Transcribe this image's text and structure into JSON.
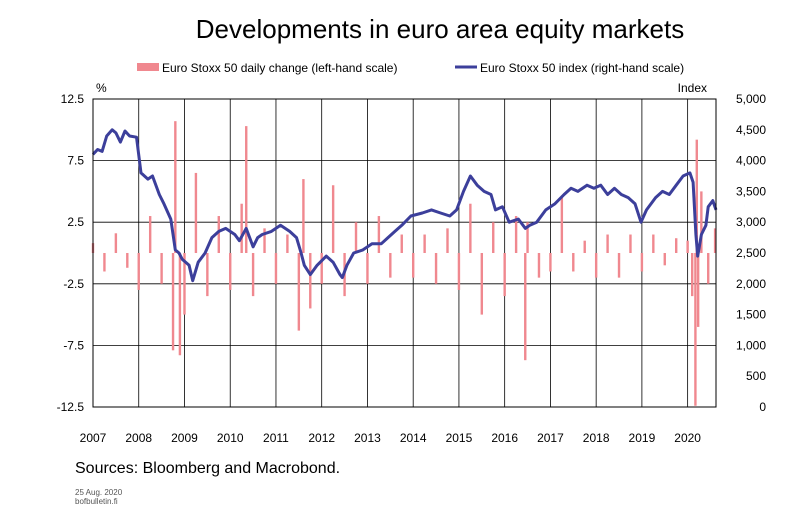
{
  "chart_data": {
    "type": "bar+line",
    "title": "Developments in euro area equity markets",
    "left_axis_unit": "%",
    "right_axis_unit": "Index",
    "left_ylim": [
      -12.5,
      12.5
    ],
    "right_ylim": [
      0,
      5000
    ],
    "left_ticks": [
      "12.5",
      "7.5",
      "2.5",
      "-2.5",
      "-7.5",
      "-12.5"
    ],
    "right_ticks": [
      "5,000",
      "4,500",
      "4,000",
      "3,500",
      "3,000",
      "2,500",
      "2,000",
      "1,500",
      "1,000",
      "500",
      "0"
    ],
    "x_ticks": [
      "2007",
      "2008",
      "2009",
      "2010",
      "2011",
      "2012",
      "2013",
      "2014",
      "2015",
      "2016",
      "2017",
      "2018",
      "2019",
      "2020"
    ],
    "xlim": [
      2007.0,
      2020.62
    ],
    "grid": true,
    "legend_position": "top",
    "series": [
      {
        "name": "Euro Stoxx 50 daily change (left-hand scale)",
        "kind": "bar",
        "axis": "left",
        "color": "#f0888f",
        "x": [
          2007.0,
          2007.25,
          2007.5,
          2007.75,
          2008.0,
          2008.25,
          2008.5,
          2008.75,
          2008.8,
          2008.9,
          2009.0,
          2009.25,
          2009.5,
          2009.75,
          2010.0,
          2010.25,
          2010.35,
          2010.5,
          2010.75,
          2011.0,
          2011.25,
          2011.5,
          2011.6,
          2011.75,
          2012.0,
          2012.25,
          2012.5,
          2012.75,
          2013.0,
          2013.25,
          2013.5,
          2013.75,
          2014.0,
          2014.25,
          2014.5,
          2014.75,
          2015.0,
          2015.25,
          2015.5,
          2015.75,
          2016.0,
          2016.25,
          2016.45,
          2016.5,
          2016.75,
          2017.0,
          2017.25,
          2017.5,
          2017.75,
          2018.0,
          2018.25,
          2018.5,
          2018.75,
          2019.0,
          2019.25,
          2019.5,
          2019.75,
          2020.0,
          2020.1,
          2020.17,
          2020.2,
          2020.23,
          2020.3,
          2020.45,
          2020.6
        ],
        "values": [
          0.8,
          -1.5,
          1.6,
          -1.2,
          -3.0,
          3.0,
          -2.5,
          -7.9,
          10.7,
          -8.3,
          -5.0,
          6.5,
          -3.5,
          3.0,
          -3.0,
          4.0,
          10.3,
          -3.5,
          2.0,
          -2.5,
          1.5,
          -6.3,
          6.0,
          -4.5,
          -2.5,
          5.5,
          -3.5,
          2.5,
          -2.5,
          3.0,
          -2.0,
          1.5,
          -2.0,
          1.5,
          -2.5,
          2.0,
          -3.0,
          4.0,
          -5.0,
          2.5,
          -3.5,
          3.0,
          -8.7,
          2.5,
          -2.0,
          -1.5,
          4.5,
          -1.5,
          1.0,
          -2.0,
          1.5,
          -2.0,
          1.5,
          -1.5,
          1.5,
          -1.0,
          1.2,
          1.0,
          -3.5,
          -12.4,
          9.2,
          -6.0,
          5.0,
          -2.5,
          2.0
        ]
      },
      {
        "name": "Euro Stoxx 50 index (right-hand scale)",
        "kind": "line",
        "axis": "right",
        "color": "#3c3f9b",
        "x": [
          2007.0,
          2007.1,
          2007.2,
          2007.3,
          2007.42,
          2007.5,
          2007.6,
          2007.7,
          2007.8,
          2007.95,
          2008.05,
          2008.2,
          2008.3,
          2008.45,
          2008.55,
          2008.7,
          2008.8,
          2008.88,
          2008.95,
          2009.1,
          2009.18,
          2009.3,
          2009.45,
          2009.6,
          2009.75,
          2009.9,
          2010.1,
          2010.2,
          2010.35,
          2010.5,
          2010.6,
          2010.7,
          2010.9,
          2011.1,
          2011.3,
          2011.45,
          2011.55,
          2011.62,
          2011.75,
          2011.9,
          2012.1,
          2012.25,
          2012.4,
          2012.45,
          2012.55,
          2012.7,
          2012.9,
          2013.1,
          2013.3,
          2013.45,
          2013.6,
          2013.75,
          2013.95,
          2014.2,
          2014.4,
          2014.6,
          2014.8,
          2014.95,
          2015.1,
          2015.25,
          2015.4,
          2015.55,
          2015.7,
          2015.8,
          2015.95,
          2016.1,
          2016.3,
          2016.45,
          2016.55,
          2016.7,
          2016.9,
          2017.1,
          2017.3,
          2017.45,
          2017.6,
          2017.8,
          2017.95,
          2018.1,
          2018.25,
          2018.4,
          2018.55,
          2018.7,
          2018.85,
          2018.98,
          2019.1,
          2019.3,
          2019.45,
          2019.6,
          2019.75,
          2019.9,
          2020.05,
          2020.12,
          2020.18,
          2020.22,
          2020.3,
          2020.4,
          2020.45,
          2020.55,
          2020.62
        ],
        "values": [
          4100,
          4180,
          4150,
          4400,
          4500,
          4450,
          4300,
          4480,
          4400,
          4380,
          3800,
          3700,
          3750,
          3450,
          3300,
          3050,
          2550,
          2500,
          2400,
          2300,
          2050,
          2350,
          2500,
          2750,
          2850,
          2900,
          2800,
          2700,
          2900,
          2600,
          2750,
          2800,
          2850,
          2950,
          2850,
          2750,
          2500,
          2300,
          2150,
          2300,
          2450,
          2350,
          2150,
          2100,
          2300,
          2500,
          2550,
          2650,
          2650,
          2750,
          2850,
          2950,
          3100,
          3150,
          3200,
          3150,
          3100,
          3200,
          3500,
          3750,
          3600,
          3500,
          3450,
          3200,
          3250,
          3000,
          3050,
          2900,
          2950,
          3000,
          3200,
          3300,
          3450,
          3550,
          3500,
          3600,
          3550,
          3600,
          3450,
          3550,
          3450,
          3400,
          3300,
          3000,
          3200,
          3400,
          3500,
          3450,
          3600,
          3750,
          3800,
          3650,
          2800,
          2450,
          2800,
          2950,
          3250,
          3350,
          3200
        ]
      }
    ]
  },
  "footer": {
    "sources": "Sources: Bloomberg and Macrobond.",
    "date": "25 Aug. 2020",
    "site": "bofbulletin.fi"
  }
}
